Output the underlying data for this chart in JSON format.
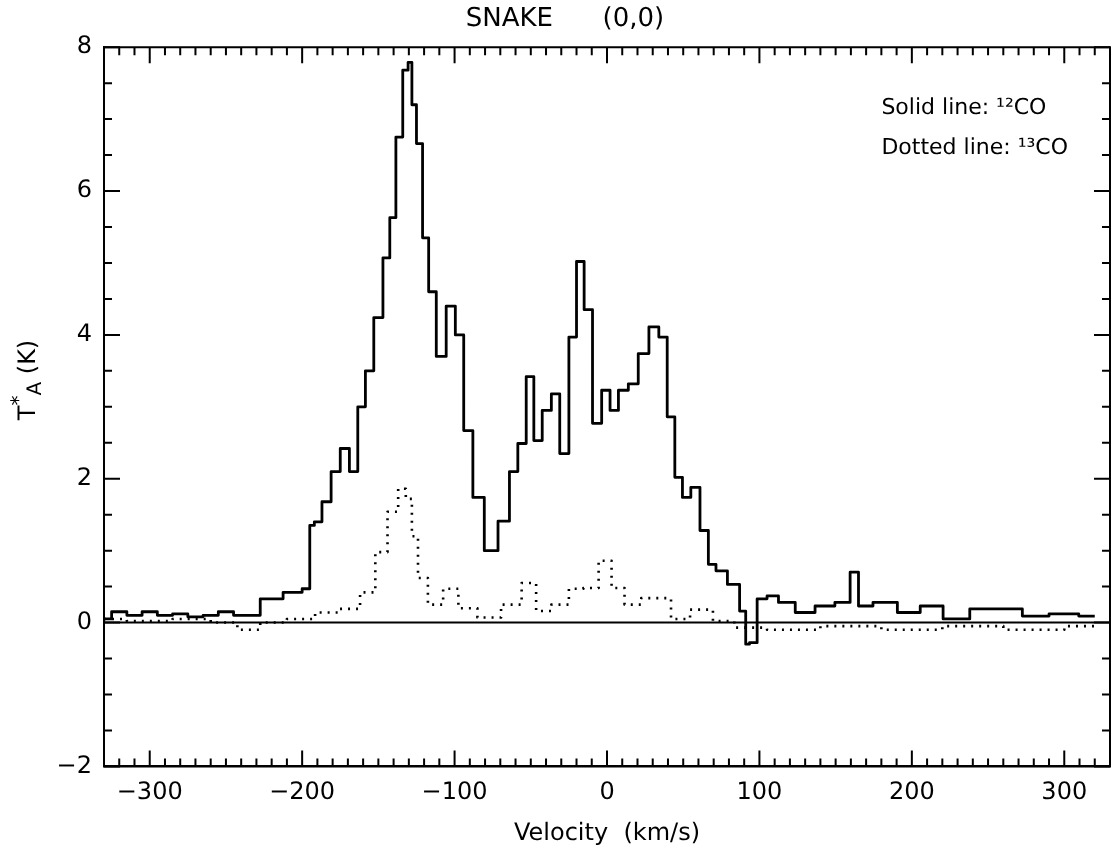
{
  "chart_data": {
    "type": "step",
    "title": "SNAKE      (0,0)",
    "xlabel": "Velocity  (km/s)",
    "ylabel": "T$^{*}$$_{A}$ (K)",
    "xlim": [
      -330,
      330
    ],
    "ylim": [
      -2,
      8
    ],
    "xticks": [
      {
        "value": -330,
        "label": null
      },
      {
        "value": -320,
        "label": null
      },
      {
        "value": -310,
        "label": null
      },
      -300,
      {
        "value": -290,
        "label": null
      },
      {
        "value": -280,
        "label": null
      },
      {
        "value": -270,
        "label": null
      },
      {
        "value": -260,
        "label": null
      },
      {
        "value": -250,
        "label": null
      },
      {
        "value": -240,
        "label": null
      },
      {
        "value": -230,
        "label": null
      },
      {
        "value": -220,
        "label": null
      },
      {
        "value": -210,
        "label": null
      },
      -200,
      {
        "value": -190,
        "label": null
      },
      {
        "value": -180,
        "label": null
      },
      {
        "value": -170,
        "label": null
      },
      {
        "value": -160,
        "label": null
      },
      {
        "value": -150,
        "label": null
      },
      {
        "value": -140,
        "label": null
      },
      {
        "value": -130,
        "label": null
      },
      {
        "value": -120,
        "label": null
      },
      {
        "value": -110,
        "label": null
      },
      -100,
      {
        "value": -90,
        "label": null
      },
      {
        "value": -80,
        "label": null
      },
      {
        "value": -70,
        "label": null
      },
      {
        "value": -60,
        "label": null
      },
      {
        "value": -50,
        "label": null
      },
      {
        "value": -40,
        "label": null
      },
      {
        "value": -30,
        "label": null
      },
      {
        "value": -20,
        "label": null
      },
      {
        "value": -10,
        "label": null
      },
      0,
      {
        "value": 10,
        "label": null
      },
      {
        "value": 20,
        "label": null
      },
      {
        "value": 30,
        "label": null
      },
      {
        "value": 40,
        "label": null
      },
      {
        "value": 50,
        "label": null
      },
      {
        "value": 60,
        "label": null
      },
      {
        "value": 70,
        "label": null
      },
      {
        "value": 80,
        "label": null
      },
      {
        "value": 90,
        "label": null
      },
      100,
      {
        "value": 110,
        "label": null
      },
      {
        "value": 120,
        "label": null
      },
      {
        "value": 130,
        "label": null
      },
      {
        "value": 140,
        "label": null
      },
      {
        "value": 150,
        "label": null
      },
      {
        "value": 160,
        "label": null
      },
      {
        "value": 170,
        "label": null
      },
      {
        "value": 180,
        "label": null
      },
      {
        "value": 190,
        "label": null
      },
      200,
      {
        "value": 210,
        "label": null
      },
      {
        "value": 220,
        "label": null
      },
      {
        "value": 230,
        "label": null
      },
      {
        "value": 240,
        "label": null
      },
      {
        "value": 250,
        "label": null
      },
      {
        "value": 260,
        "label": null
      },
      {
        "value": 270,
        "label": null
      },
      {
        "value": 280,
        "label": null
      },
      {
        "value": 290,
        "label": null
      },
      300,
      {
        "value": 310,
        "label": null
      },
      {
        "value": 320,
        "label": null
      }
    ],
    "yticks": [
      -2,
      {
        "value": -1.5,
        "label": null
      },
      {
        "value": -1,
        "label": null
      },
      {
        "value": -0.5,
        "label": null
      },
      0,
      {
        "value": 0.5,
        "label": null
      },
      {
        "value": 1,
        "label": null
      },
      {
        "value": 1.5,
        "label": null
      },
      2,
      {
        "value": 2.5,
        "label": null
      },
      {
        "value": 3,
        "label": null
      },
      {
        "value": 3.5,
        "label": null
      },
      4,
      {
        "value": 4.5,
        "label": null
      },
      {
        "value": 5,
        "label": null
      },
      {
        "value": 5.5,
        "label": null
      },
      6,
      {
        "value": 6.5,
        "label": null
      },
      {
        "value": 7,
        "label": null
      },
      {
        "value": 7.5,
        "label": null
      },
      8
    ],
    "grid": false,
    "legend": false,
    "marker": "none",
    "ref_lines": [
      {
        "axis": "y",
        "value": 0,
        "color": "#000000"
      }
    ],
    "annotations": [
      "Solid line: ¹²CO",
      "Dotted line: ¹³CO"
    ],
    "series": [
      {
        "color": "#000000",
        "line_style": "solid",
        "x": [
          -330,
          -320,
          -310,
          -300,
          -290,
          -280,
          -270,
          -260,
          -250,
          -240,
          -234,
          -221,
          -204,
          -196,
          -194,
          -190,
          -184,
          -178,
          -172,
          -166,
          -161,
          -156,
          -150,
          -144,
          -141,
          -136,
          -132,
          -129,
          -127,
          -123,
          -119,
          -115,
          -109,
          -102,
          -97,
          -91,
          -85,
          -76,
          -67,
          -61,
          -56,
          -50,
          -46,
          -39,
          -34,
          -28,
          -22,
          -18,
          -12,
          -7,
          0,
          4,
          11,
          17,
          24,
          31,
          37,
          42,
          47,
          52,
          58,
          64,
          69,
          74,
          84,
          90,
          92,
          95,
          102,
          108,
          117,
          130,
          143,
          156,
          163,
          167,
          182,
          199,
          212,
          229,
          247,
          264,
          281,
          299,
          320
        ],
        "values": [
          0.05,
          0.15,
          0.1,
          0.15,
          0.1,
          0.12,
          0.08,
          0.1,
          0.15,
          0.1,
          0.1,
          0.33,
          0.42,
          0.47,
          1.35,
          1.4,
          1.68,
          2.1,
          2.42,
          2.1,
          3.0,
          3.5,
          4.24,
          5.07,
          5.63,
          6.75,
          7.68,
          7.79,
          7.2,
          6.66,
          5.35,
          4.6,
          3.7,
          4.4,
          4.0,
          2.67,
          1.74,
          1.0,
          1.41,
          2.1,
          2.49,
          3.42,
          2.53,
          2.95,
          3.18,
          2.35,
          3.97,
          5.02,
          4.35,
          2.77,
          3.23,
          2.95,
          3.23,
          3.32,
          3.74,
          4.11,
          3.97,
          2.86,
          2.02,
          1.74,
          1.88,
          1.28,
          0.81,
          0.72,
          0.53,
          0.16,
          -0.3,
          -0.28,
          0.33,
          0.37,
          0.28,
          0.14,
          0.23,
          0.28,
          0.7,
          0.23,
          0.28,
          0.14,
          0.23,
          0.05,
          0.19,
          0.19,
          0.09,
          0.12,
          0.09
        ]
      },
      {
        "color": "#000000",
        "line_style": "dotted",
        "x": [
          -330,
          -300,
          -270,
          -250,
          -235,
          -220,
          -200,
          -183,
          -168,
          -156,
          -148,
          -140,
          -134,
          -130,
          -126,
          -122,
          -113,
          -102,
          -93,
          -77,
          -62,
          -50,
          -43,
          -30,
          -20,
          -11,
          0,
          6,
          17,
          28,
          37,
          47,
          62,
          77,
          90,
          120,
          160,
          200,
          240,
          280,
          320
        ],
        "values": [
          0.05,
          0.02,
          0.05,
          0.0,
          -0.1,
          0.0,
          0.05,
          0.14,
          0.19,
          0.42,
          0.98,
          1.54,
          1.86,
          1.72,
          1.2,
          0.62,
          0.25,
          0.47,
          0.2,
          0.07,
          0.25,
          0.55,
          0.16,
          0.25,
          0.47,
          0.48,
          0.86,
          0.48,
          0.25,
          0.34,
          0.34,
          0.05,
          0.18,
          0.02,
          -0.07,
          -0.1,
          -0.05,
          -0.1,
          -0.05,
          -0.1,
          -0.05
        ]
      }
    ]
  }
}
